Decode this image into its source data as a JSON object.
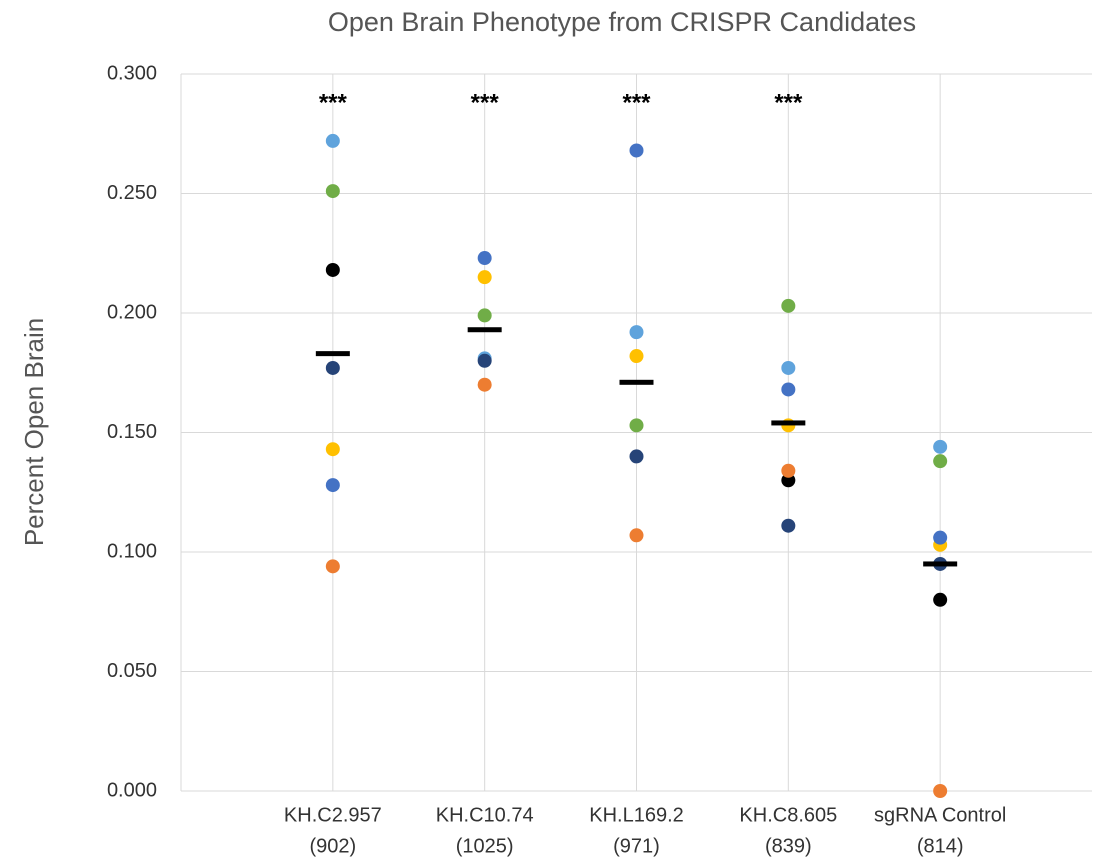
{
  "chart_data": {
    "type": "dot",
    "title": "Open Brain Phenotype from CRISPR Candidates",
    "y_label": "Percent Open Brain",
    "categories": [
      "KH.C2.957",
      "KH.C10.74",
      "KH.L169.2",
      "KH.C8.605",
      "sgRNA Control"
    ],
    "category_counts": [
      "(902)",
      "(1025)",
      "(971)",
      "(839)",
      "(814)"
    ],
    "annotations": [
      "***",
      "***",
      "***",
      "***",
      null
    ],
    "series": [
      {
        "color": "#5fa3dc",
        "values": [
          0.272,
          0.181,
          0.192,
          0.177,
          0.144
        ]
      },
      {
        "color": "#70ad47",
        "values": [
          0.251,
          0.199,
          0.153,
          0.203,
          0.138
        ]
      },
      {
        "color": "#000000",
        "values": [
          0.218,
          null,
          null,
          0.13,
          0.08
        ]
      },
      {
        "color": "#ffc000",
        "values": [
          0.143,
          0.215,
          0.182,
          0.153,
          0.103
        ]
      },
      {
        "color": "#4472c4",
        "values": [
          0.128,
          0.223,
          0.268,
          0.168,
          0.106
        ]
      },
      {
        "color": "#ed7d31",
        "values": [
          0.094,
          0.17,
          0.107,
          0.134,
          0.0
        ]
      },
      {
        "color": "#264478",
        "values": [
          0.177,
          0.18,
          0.14,
          0.111,
          0.095
        ]
      }
    ],
    "means": {
      "color": "#000000",
      "values": [
        0.183,
        0.193,
        0.171,
        0.154,
        0.095
      ]
    },
    "ylim": [
      0,
      0.3
    ],
    "yticks": [
      {
        "value": 0,
        "label": "0.000"
      },
      {
        "value": 0.05,
        "label": "0.050"
      },
      {
        "value": 0.1,
        "label": "0.100"
      },
      {
        "value": 0.15,
        "label": "0.150"
      },
      {
        "value": 0.2,
        "label": "0.200"
      },
      {
        "value": 0.25,
        "label": "0.250"
      },
      {
        "value": 0.3,
        "label": "0.300"
      }
    ],
    "grid": true
  }
}
